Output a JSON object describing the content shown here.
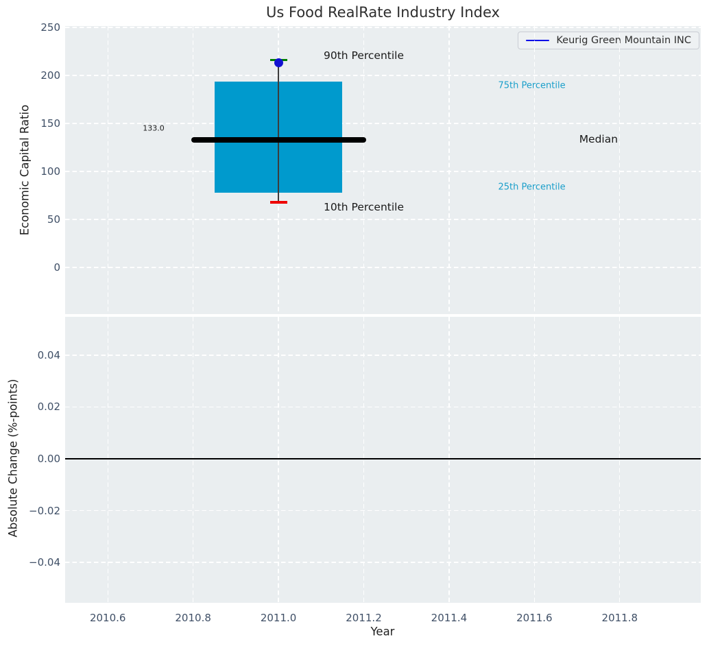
{
  "figure": {
    "title": "Us Food RealRate Industry Index"
  },
  "legend": {
    "label": "Keurig Green Mountain INC",
    "line_color": "#0000e8"
  },
  "colors": {
    "axes_bg": "#eaeef0",
    "grid": "#ffffff",
    "tick_label": "#3f4f66",
    "text": "#1f1f1f",
    "percentile_label": "#1b9fca",
    "box_fill": "#009acd",
    "median": "#000000",
    "whisker": "#3c3c3c",
    "p90_cap": "#008000",
    "p10_cap": "#ee0000",
    "company_marker": "#1212d0",
    "zero_line": "#000000"
  },
  "chart_data": [
    {
      "type": "boxplot",
      "title": "Us Food RealRate Industry Index",
      "xlabel": "",
      "ylabel": "Economic Capital Ratio",
      "xlim": [
        2010.5,
        2011.99
      ],
      "ylim": [
        -48.6,
        251.4
      ],
      "grid": true,
      "legend_position": "upper right",
      "xticks": [
        {
          "v": 2010.6,
          "label": "2010.6"
        },
        {
          "v": 2010.8,
          "label": "2010.8"
        },
        {
          "v": 2011.0,
          "label": "2011.0"
        },
        {
          "v": 2011.2,
          "label": "2011.2"
        },
        {
          "v": 2011.4,
          "label": "2011.4"
        },
        {
          "v": 2011.6,
          "label": "2011.6"
        },
        {
          "v": 2011.8,
          "label": "2011.8"
        }
      ],
      "yticks": [
        {
          "v": 250,
          "label": "250"
        },
        {
          "v": 200,
          "label": "200"
        },
        {
          "v": 150,
          "label": "150"
        },
        {
          "v": 100,
          "label": "100"
        },
        {
          "v": 50,
          "label": "50"
        },
        {
          "v": 0,
          "label": "0"
        }
      ],
      "box": {
        "x": 2011.0,
        "box_left": 2010.85,
        "box_right": 2011.15,
        "p10": 68,
        "p25": 78,
        "median": 133.0,
        "p75": 193.5,
        "p90": 216,
        "median_label": "133.0",
        "median_span": [
          2010.795,
          2011.205
        ],
        "cap_span": [
          2010.98,
          2011.02
        ],
        "company_point": {
          "name": "Keurig Green Mountain INC",
          "value": 213
        }
      },
      "annotations": [
        {
          "text": "90th Percentile",
          "x": 2011.2,
          "y": 221,
          "anchor": "center",
          "size": 15.5,
          "color": "#1a1a1a"
        },
        {
          "text": "10th Percentile",
          "x": 2011.2,
          "y": 63,
          "anchor": "center",
          "size": 15.5,
          "color": "#1a1a1a"
        },
        {
          "text": "Median",
          "x": 2011.705,
          "y": 133.5,
          "anchor": "left",
          "size": 15.5,
          "color": "#1a1a1a"
        },
        {
          "text": "75th Percentile",
          "x": 2011.515,
          "y": 189,
          "anchor": "left",
          "size": 13,
          "color": "#1b9fca"
        },
        {
          "text": "25th Percentile",
          "x": 2011.515,
          "y": 83.5,
          "anchor": "left",
          "size": 13,
          "color": "#1b9fca"
        },
        {
          "text": "133.0",
          "x": 2010.682,
          "y": 145,
          "anchor": "left",
          "size": 11,
          "color": "#1a1a1a"
        }
      ]
    },
    {
      "type": "line",
      "title": "",
      "xlabel": "Year",
      "ylabel": "Absolute Change (%-points)",
      "xlim": [
        2010.5,
        2011.99
      ],
      "ylim": [
        -0.0556,
        0.0548
      ],
      "grid": true,
      "xticks": [
        {
          "v": 2010.6,
          "label": "2010.6"
        },
        {
          "v": 2010.8,
          "label": "2010.8"
        },
        {
          "v": 2011.0,
          "label": "2011.0"
        },
        {
          "v": 2011.2,
          "label": "2011.2"
        },
        {
          "v": 2011.4,
          "label": "2011.4"
        },
        {
          "v": 2011.6,
          "label": "2011.6"
        },
        {
          "v": 2011.8,
          "label": "2011.8"
        }
      ],
      "yticks": [
        {
          "v": 0.04,
          "label": "0.04"
        },
        {
          "v": 0.02,
          "label": "0.02"
        },
        {
          "v": 0.0,
          "label": "0.00"
        },
        {
          "v": -0.02,
          "label": "−0.02"
        },
        {
          "v": -0.04,
          "label": "−0.04"
        }
      ],
      "zero_line_y": 0.0,
      "series": []
    }
  ]
}
